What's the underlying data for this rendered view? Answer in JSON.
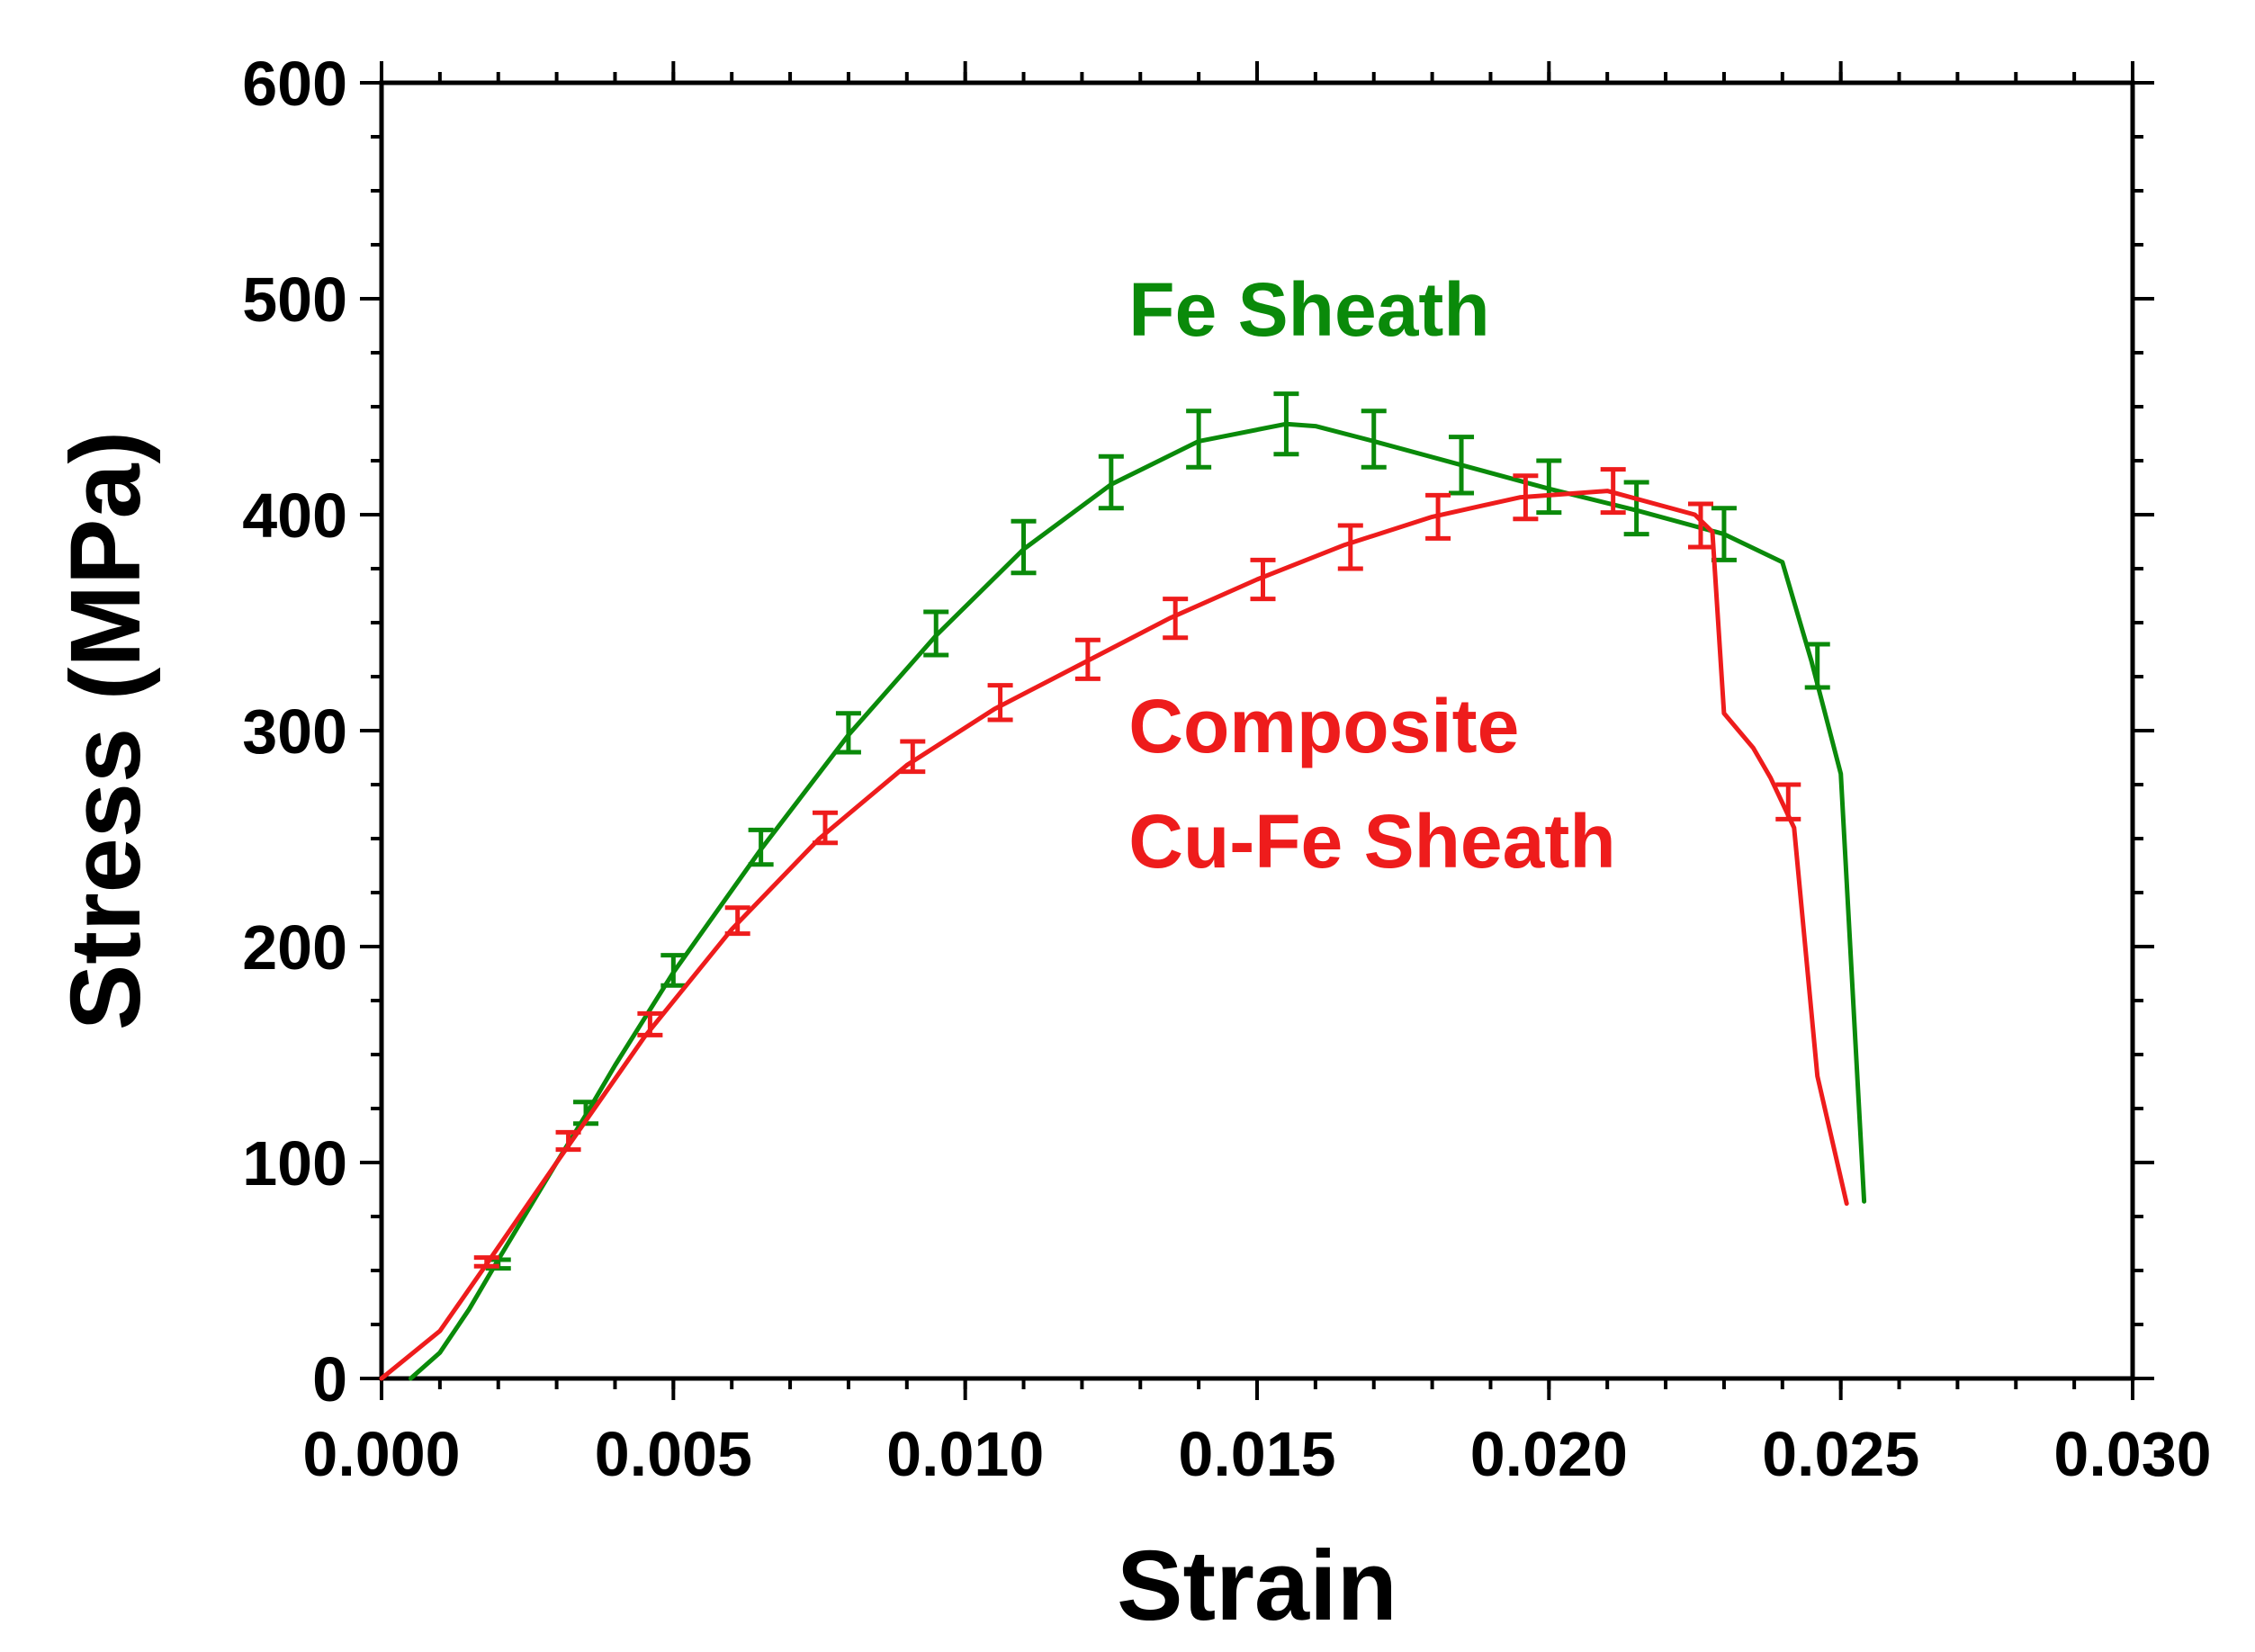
{
  "chart_data": {
    "type": "line",
    "title": "",
    "xlabel": "Strain",
    "ylabel": "Stress (MPa)",
    "xlim": [
      0.0,
      0.03
    ],
    "ylim": [
      0,
      600
    ],
    "xticks": [
      {
        "value": 0.0,
        "label": "0.000"
      },
      {
        "value": 0.005,
        "label": "0.005"
      },
      {
        "value": 0.01,
        "label": "0.010"
      },
      {
        "value": 0.015,
        "label": "0.015"
      },
      {
        "value": 0.02,
        "label": "0.020"
      },
      {
        "value": 0.025,
        "label": "0.025"
      },
      {
        "value": 0.03,
        "label": "0.030"
      }
    ],
    "yticks": [
      {
        "value": 0,
        "label": "0"
      },
      {
        "value": 100,
        "label": "100"
      },
      {
        "value": 200,
        "label": "200"
      },
      {
        "value": 300,
        "label": "300"
      },
      {
        "value": 400,
        "label": "400"
      },
      {
        "value": 500,
        "label": "500"
      },
      {
        "value": 600,
        "label": "600"
      }
    ],
    "x_minor_step": 0.001,
    "y_minor_step": 25,
    "grid": false,
    "series": [
      {
        "name": "Fe Sheath",
        "color": "#0a8a0a",
        "label_lines": [
          "Fe Sheath"
        ],
        "label_anchor": {
          "x": 0.0128,
          "y": 483
        },
        "curve": [
          [
            0.0005,
            0
          ],
          [
            0.001,
            12
          ],
          [
            0.0015,
            32
          ],
          [
            0.002,
            55
          ],
          [
            0.003,
            100
          ],
          [
            0.0035,
            122
          ],
          [
            0.004,
            145
          ],
          [
            0.005,
            188
          ],
          [
            0.0065,
            245
          ],
          [
            0.008,
            298
          ],
          [
            0.0095,
            344
          ],
          [
            0.011,
            384
          ],
          [
            0.0125,
            414
          ],
          [
            0.014,
            434
          ],
          [
            0.0155,
            442
          ],
          [
            0.016,
            441
          ],
          [
            0.017,
            434
          ],
          [
            0.0185,
            423
          ],
          [
            0.02,
            412
          ],
          [
            0.0215,
            402
          ],
          [
            0.023,
            391
          ],
          [
            0.024,
            378
          ],
          [
            0.0245,
            332
          ],
          [
            0.025,
            280
          ],
          [
            0.0254,
            82
          ]
        ],
        "error_bars": [
          {
            "x": 0.002,
            "y": 53,
            "err": 2
          },
          {
            "x": 0.0035,
            "y": 123,
            "err": 5
          },
          {
            "x": 0.005,
            "y": 189,
            "err": 7
          },
          {
            "x": 0.0065,
            "y": 246,
            "err": 8
          },
          {
            "x": 0.008,
            "y": 299,
            "err": 9
          },
          {
            "x": 0.0095,
            "y": 345,
            "err": 10
          },
          {
            "x": 0.011,
            "y": 385,
            "err": 12
          },
          {
            "x": 0.0125,
            "y": 415,
            "err": 12
          },
          {
            "x": 0.014,
            "y": 435,
            "err": 13
          },
          {
            "x": 0.0155,
            "y": 442,
            "err": 14
          },
          {
            "x": 0.017,
            "y": 435,
            "err": 13
          },
          {
            "x": 0.0185,
            "y": 423,
            "err": 13
          },
          {
            "x": 0.02,
            "y": 413,
            "err": 12
          },
          {
            "x": 0.0215,
            "y": 403,
            "err": 12
          },
          {
            "x": 0.023,
            "y": 391,
            "err": 12
          },
          {
            "x": 0.0246,
            "y": 330,
            "err": 10
          }
        ]
      },
      {
        "name": "Composite Cu-Fe Sheath",
        "color": "#ee1c1c",
        "label_lines": [
          "Composite",
          "Cu-Fe Sheath"
        ],
        "label_anchor": {
          "x": 0.0128,
          "y": 290
        },
        "curve": [
          [
            0.0,
            0
          ],
          [
            0.001,
            22
          ],
          [
            0.0018,
            53
          ],
          [
            0.003,
            100
          ],
          [
            0.0045,
            158
          ],
          [
            0.006,
            208
          ],
          [
            0.0075,
            250
          ],
          [
            0.009,
            284
          ],
          [
            0.0105,
            310
          ],
          [
            0.012,
            331
          ],
          [
            0.0135,
            352
          ],
          [
            0.015,
            370
          ],
          [
            0.0165,
            386
          ],
          [
            0.018,
            399
          ],
          [
            0.0195,
            408
          ],
          [
            0.021,
            411
          ],
          [
            0.0225,
            400
          ],
          [
            0.0228,
            392
          ],
          [
            0.023,
            308
          ],
          [
            0.0235,
            292
          ],
          [
            0.0238,
            278
          ],
          [
            0.0242,
            255
          ],
          [
            0.0246,
            140
          ],
          [
            0.0251,
            81
          ]
        ],
        "error_bars": [
          {
            "x": 0.0018,
            "y": 54,
            "err": 2
          },
          {
            "x": 0.0032,
            "y": 110,
            "err": 4
          },
          {
            "x": 0.0046,
            "y": 164,
            "err": 5
          },
          {
            "x": 0.0061,
            "y": 212,
            "err": 6
          },
          {
            "x": 0.0076,
            "y": 255,
            "err": 7
          },
          {
            "x": 0.0091,
            "y": 288,
            "err": 7
          },
          {
            "x": 0.0106,
            "y": 313,
            "err": 8
          },
          {
            "x": 0.0121,
            "y": 333,
            "err": 9
          },
          {
            "x": 0.0136,
            "y": 352,
            "err": 9
          },
          {
            "x": 0.0151,
            "y": 370,
            "err": 9
          },
          {
            "x": 0.0166,
            "y": 385,
            "err": 10
          },
          {
            "x": 0.0181,
            "y": 399,
            "err": 10
          },
          {
            "x": 0.0196,
            "y": 408,
            "err": 10
          },
          {
            "x": 0.0211,
            "y": 411,
            "err": 10
          },
          {
            "x": 0.0226,
            "y": 395,
            "err": 10
          },
          {
            "x": 0.0241,
            "y": 267,
            "err": 8
          }
        ]
      }
    ]
  }
}
